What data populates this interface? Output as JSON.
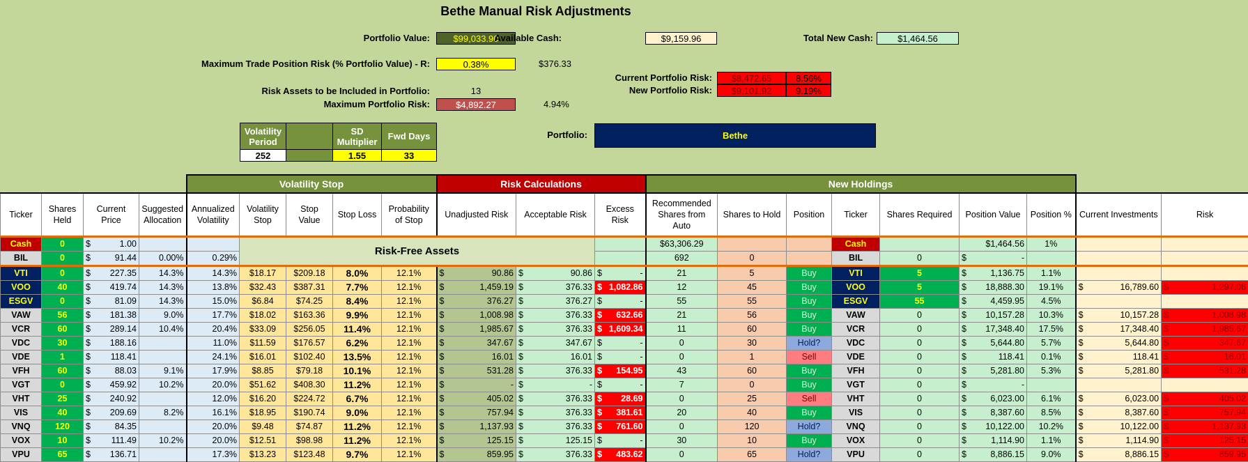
{
  "header": {
    "title": "Bethe Manual Risk Adjustments",
    "portfolio_value_label": "Portfolio Value:",
    "portfolio_value": "$99,033.90",
    "available_cash_label": "Available Cash:",
    "available_cash": "$9,159.96",
    "total_new_cash_label": "Total New Cash:",
    "total_new_cash": "$1,464.56",
    "max_trade_risk_label": "Maximum Trade Position Risk (% Portfolio Value) - R:",
    "max_trade_risk_pct": "0.38%",
    "max_trade_risk_amount": "$376.33",
    "current_risk_label": "Current Portfolio Risk:",
    "current_risk_amount": "$8,472.65",
    "current_risk_pct": "8.56%",
    "new_risk_label": "New Portfolio Risk:",
    "new_risk_amount": "$9,101.92",
    "new_risk_pct": "9.19%",
    "risk_assets_label": "Risk Assets to be Included in Portfolio:",
    "risk_assets": "13",
    "max_portfolio_risk_label": "Maximum Portfolio Risk:",
    "max_portfolio_risk_amount": "$4,892.27",
    "max_portfolio_risk_pct": "4.94%",
    "portfolio_label": "Portfolio:",
    "portfolio": "Bethe"
  },
  "params": {
    "volatility_period_label": "Volatility Period",
    "volatility_period": "252",
    "sd_multiplier_label": "SD Multiplier",
    "sd_multiplier": "1.55",
    "fwd_days_label": "Fwd Days",
    "fwd_days": "33"
  },
  "table": {
    "groups": [
      {
        "label": "Volatility Stop"
      },
      {
        "label": "Risk Calculations"
      },
      {
        "label": "New Holdings"
      }
    ],
    "risk_free_label": "Risk-Free Assets",
    "columns": [
      "Ticker",
      "Shares Held",
      "Current Price",
      "Suggested Allocation",
      "Annualized Volatility",
      "Volatility Stop",
      "Stop Value",
      "Stop Loss",
      "Probability of Stop",
      "Unadjusted Risk",
      "Acceptable Risk",
      "Excess Risk",
      "Recommended Shares from Auto",
      "Shares to Hold",
      "Position",
      "Ticker",
      "Shares Required",
      "Position Value",
      "Position %",
      "Current Investments",
      "Risk"
    ],
    "rows": [
      [
        "Cash",
        "0",
        "$ 1.00",
        null,
        null,
        null,
        null,
        null,
        null,
        null,
        null,
        null,
        "$63,306.29",
        null,
        null,
        "Cash",
        null,
        "$1,464.56",
        "1%",
        null,
        null
      ],
      [
        "BIL",
        "0",
        "$ 91.44",
        "0.00%",
        "0.29%",
        null,
        null,
        null,
        null,
        null,
        null,
        null,
        "692",
        "0",
        null,
        "BIL",
        "0",
        "$ -",
        null,
        null,
        null
      ],
      [
        "VTI",
        "0",
        "$ 227.35",
        "14.3%",
        "14.3%",
        "$18.17",
        "$209.18",
        "8.0%",
        "12.1%",
        "$ 90.86",
        "$ 90.86",
        "$ -",
        "21",
        "5",
        "Buy",
        "VTI",
        "5",
        "$ 1,136.75",
        "1.1%",
        null,
        null
      ],
      [
        "VOO",
        "40",
        "$ 419.74",
        "14.3%",
        "13.8%",
        "$32.43",
        "$387.31",
        "7.7%",
        "12.1%",
        "$ 1,459.19",
        "$ 376.33",
        "$ 1,082.86",
        "12",
        "45",
        "Buy",
        "VOO",
        "5",
        "$ 18,888.30",
        "19.1%",
        "$ 16,789.60",
        "$ 1,297.06"
      ],
      [
        "ESGV",
        "0",
        "$ 81.09",
        "14.3%",
        "15.0%",
        "$6.84",
        "$74.25",
        "8.4%",
        "12.1%",
        "$ 376.27",
        "$ 376.27",
        "$ -",
        "55",
        "55",
        "Buy",
        "ESGV",
        "55",
        "$ 4,459.95",
        "4.5%",
        null,
        null
      ],
      [
        "VAW",
        "56",
        "$ 181.38",
        "9.0%",
        "17.7%",
        "$18.02",
        "$163.36",
        "9.9%",
        "12.1%",
        "$ 1,008.98",
        "$ 376.33",
        "$ 632.66",
        "21",
        "56",
        "Buy",
        "VAW",
        "0",
        "$ 10,157.28",
        "10.3%",
        "$ 10,157.28",
        "$ 1,008.98"
      ],
      [
        "VCR",
        "60",
        "$ 289.14",
        "10.4%",
        "20.4%",
        "$33.09",
        "$256.05",
        "11.4%",
        "12.1%",
        "$ 1,985.67",
        "$ 376.33",
        "$ 1,609.34",
        "11",
        "60",
        "Buy",
        "VCR",
        "0",
        "$ 17,348.40",
        "17.5%",
        "$ 17,348.40",
        "$ 1,985.67"
      ],
      [
        "VDC",
        "30",
        "$ 188.16",
        null,
        "11.0%",
        "$11.59",
        "$176.57",
        "6.2%",
        "12.1%",
        "$ 347.67",
        "$ 347.67",
        "$ -",
        "0",
        "30",
        "Hold?",
        "VDC",
        "0",
        "$ 5,644.80",
        "5.7%",
        "$ 5,644.80",
        "$ 347.67"
      ],
      [
        "VDE",
        "1",
        "$ 118.41",
        null,
        "24.1%",
        "$16.01",
        "$102.40",
        "13.5%",
        "12.1%",
        "$ 16.01",
        "$ 16.01",
        "$ -",
        "0",
        "1",
        "Sell",
        "VDE",
        "0",
        "$ 118.41",
        "0.1%",
        "$ 118.41",
        "$ 16.01"
      ],
      [
        "VFH",
        "60",
        "$ 88.03",
        "9.1%",
        "17.9%",
        "$8.85",
        "$79.18",
        "10.1%",
        "12.1%",
        "$ 531.28",
        "$ 376.33",
        "$ 154.95",
        "43",
        "60",
        "Buy",
        "VFH",
        "0",
        "$ 5,281.80",
        "5.3%",
        "$ 5,281.80",
        "$ 531.28"
      ],
      [
        "VGT",
        "0",
        "$ 459.92",
        "10.2%",
        "20.0%",
        "$51.62",
        "$408.30",
        "11.2%",
        "12.1%",
        "$ -",
        "$ -",
        "$ -",
        "7",
        "0",
        "Buy",
        "VGT",
        "0",
        "$ -",
        null,
        null,
        null
      ],
      [
        "VHT",
        "25",
        "$ 240.92",
        null,
        "12.0%",
        "$16.20",
        "$224.72",
        "6.7%",
        "12.1%",
        "$ 405.02",
        "$ 376.33",
        "$ 28.69",
        "0",
        "25",
        "Sell",
        "VHT",
        "0",
        "$ 6,023.00",
        "6.1%",
        "$ 6,023.00",
        "$ 405.02"
      ],
      [
        "VIS",
        "40",
        "$ 209.69",
        "8.2%",
        "16.1%",
        "$18.95",
        "$190.74",
        "9.0%",
        "12.1%",
        "$ 757.94",
        "$ 376.33",
        "$ 381.61",
        "20",
        "40",
        "Buy",
        "VIS",
        "0",
        "$ 8,387.60",
        "8.5%",
        "$ 8,387.60",
        "$ 757.94"
      ],
      [
        "VNQ",
        "120",
        "$ 84.35",
        null,
        "20.0%",
        "$9.48",
        "$74.87",
        "11.2%",
        "12.1%",
        "$ 1,137.93",
        "$ 376.33",
        "$ 761.60",
        "0",
        "120",
        "Hold?",
        "VNQ",
        "0",
        "$ 10,122.00",
        "10.2%",
        "$ 10,122.00",
        "$ 1,137.93"
      ],
      [
        "VOX",
        "10",
        "$ 111.49",
        "10.2%",
        "20.0%",
        "$12.51",
        "$98.98",
        "11.2%",
        "12.1%",
        "$ 125.15",
        "$ 125.15",
        "$ -",
        "30",
        "10",
        "Buy",
        "VOX",
        "0",
        "$ 1,114.90",
        "1.1%",
        "$ 1,114.90",
        "$ 125.15"
      ],
      [
        "VPU",
        "65",
        "$ 136.71",
        null,
        "17.3%",
        "$13.23",
        "$123.48",
        "9.7%",
        "12.1%",
        "$ 859.95",
        "$ 376.33",
        "$ 483.62",
        "0",
        "65",
        "Hold?",
        "VPU",
        "0",
        "$ 8,886.15",
        "9.0%",
        "$ 8,886.15",
        "$ 859.95"
      ]
    ]
  }
}
